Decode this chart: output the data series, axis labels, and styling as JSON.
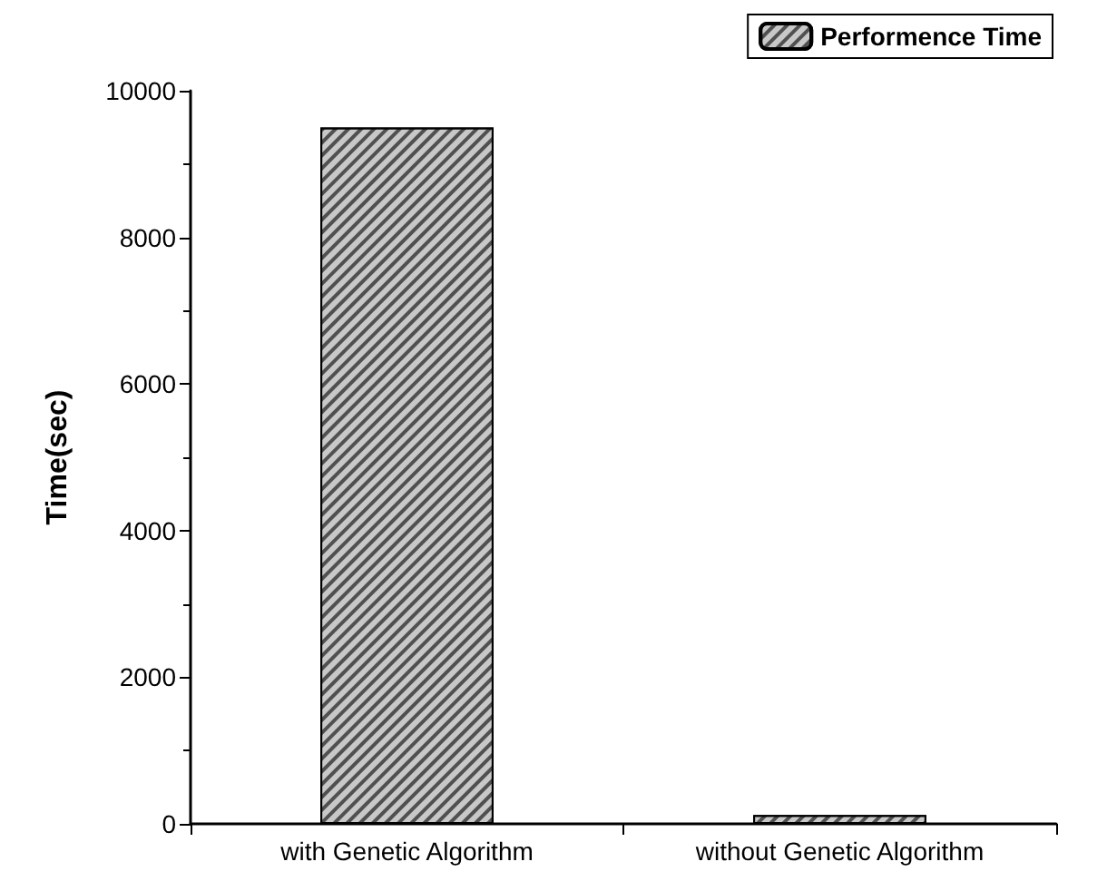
{
  "chart_data": {
    "type": "bar",
    "ylabel": "Time(sec)",
    "categories": [
      "with Genetic Algorithm",
      "without Genetic Algorithm"
    ],
    "series": [
      {
        "name": "Performence Time",
        "color": "#c8c8c8",
        "values": [
          9500,
          120
        ]
      }
    ],
    "ylim": [
      0,
      10000
    ],
    "yticks": [
      0,
      2000,
      4000,
      6000,
      8000,
      10000
    ],
    "grid": false,
    "legend": "top right"
  }
}
